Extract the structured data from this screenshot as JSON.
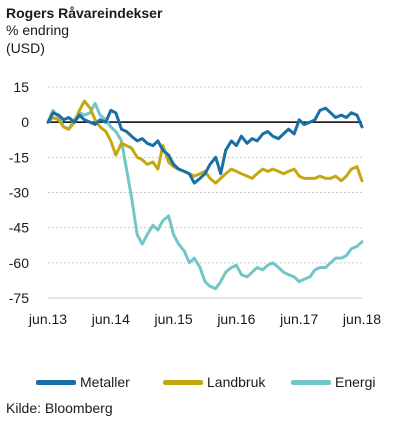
{
  "header": {
    "title": "Rogers Råvareindekser",
    "subtitle_line1": "% endring",
    "subtitle_line2": "(USD)"
  },
  "footer": {
    "source": "Kilde: Bloomberg"
  },
  "colors": {
    "Metaller": "#1a6fa6",
    "Landbruk": "#c4a812",
    "Energi": "#73c6c7",
    "zero_line": "#000000",
    "grid": "#cccccc"
  },
  "chart_data": {
    "type": "line",
    "xlabel": "",
    "ylabel": "",
    "ylim": [
      -75,
      15
    ],
    "yticks": [
      15,
      0,
      -15,
      -30,
      -45,
      -60,
      -75
    ],
    "ytick_labels": [
      "15",
      "0",
      "-15",
      "-30",
      "-45",
      "-60",
      "-75"
    ],
    "xlim": [
      0,
      5
    ],
    "xticks": [
      0,
      1,
      2,
      3,
      4,
      5
    ],
    "xtick_labels": [
      "jun.13",
      "jun.14",
      "jun.15",
      "jun.16",
      "jun.17",
      "jun.18"
    ],
    "grid": "horizontal dashed",
    "legend_position": "bottom",
    "series": [
      {
        "name": "Metaller",
        "x": [
          0.0,
          0.08,
          0.17,
          0.25,
          0.33,
          0.42,
          0.5,
          0.58,
          0.67,
          0.75,
          0.83,
          0.92,
          1.0,
          1.08,
          1.17,
          1.25,
          1.33,
          1.42,
          1.5,
          1.58,
          1.67,
          1.75,
          1.83,
          1.92,
          2.0,
          2.08,
          2.17,
          2.25,
          2.33,
          2.42,
          2.5,
          2.58,
          2.67,
          2.75,
          2.83,
          2.92,
          3.0,
          3.08,
          3.17,
          3.25,
          3.33,
          3.42,
          3.5,
          3.58,
          3.67,
          3.75,
          3.83,
          3.92,
          4.0,
          4.08,
          4.17,
          4.25,
          4.33,
          4.42,
          4.5,
          4.58,
          4.67,
          4.75,
          4.83,
          4.92,
          5.0
        ],
        "y": [
          0,
          4,
          3,
          1,
          2,
          0,
          3,
          1,
          0,
          -1,
          1,
          0,
          5,
          4,
          -3,
          -4,
          -6,
          -8,
          -7,
          -9,
          -10,
          -8,
          -12,
          -14,
          -18,
          -20,
          -21,
          -22,
          -26,
          -24,
          -22,
          -18,
          -15,
          -22,
          -12,
          -8,
          -10,
          -6,
          -9,
          -7,
          -8,
          -5,
          -4,
          -6,
          -7,
          -5,
          -3,
          -5,
          1,
          -1,
          0,
          1,
          5,
          6,
          4,
          2,
          3,
          2,
          4,
          3,
          -2
        ]
      },
      {
        "name": "Landbruk",
        "x": [
          0.0,
          0.08,
          0.17,
          0.25,
          0.33,
          0.42,
          0.5,
          0.58,
          0.67,
          0.75,
          0.83,
          0.92,
          1.0,
          1.08,
          1.17,
          1.25,
          1.33,
          1.42,
          1.5,
          1.58,
          1.67,
          1.75,
          1.83,
          1.92,
          2.0,
          2.08,
          2.17,
          2.25,
          2.33,
          2.42,
          2.5,
          2.58,
          2.67,
          2.75,
          2.83,
          2.92,
          3.0,
          3.08,
          3.17,
          3.25,
          3.33,
          3.42,
          3.5,
          3.58,
          3.67,
          3.75,
          3.83,
          3.92,
          4.0,
          4.08,
          4.17,
          4.25,
          4.33,
          4.42,
          4.5,
          4.58,
          4.67,
          4.75,
          4.83,
          4.92,
          5.0
        ],
        "y": [
          0,
          2,
          1,
          -2,
          -3,
          0,
          5,
          9,
          6,
          1,
          -2,
          -4,
          -8,
          -14,
          -9,
          -10,
          -11,
          -15,
          -16,
          -18,
          -17,
          -20,
          -10,
          -17,
          -19,
          -20,
          -21,
          -22,
          -23,
          -22,
          -21,
          -24,
          -26,
          -24,
          -22,
          -20,
          -21,
          -22,
          -23,
          -24,
          -22,
          -20,
          -21,
          -20,
          -21,
          -22,
          -21,
          -20,
          -23,
          -24,
          -24,
          -24,
          -23,
          -24,
          -24,
          -23,
          -25,
          -23,
          -20,
          -19,
          -25
        ]
      },
      {
        "name": "Energi",
        "x": [
          0.0,
          0.08,
          0.17,
          0.25,
          0.33,
          0.42,
          0.5,
          0.58,
          0.67,
          0.75,
          0.83,
          0.92,
          1.0,
          1.08,
          1.17,
          1.25,
          1.33,
          1.42,
          1.5,
          1.58,
          1.67,
          1.75,
          1.83,
          1.92,
          2.0,
          2.08,
          2.17,
          2.25,
          2.33,
          2.42,
          2.5,
          2.58,
          2.67,
          2.75,
          2.83,
          2.92,
          3.0,
          3.08,
          3.17,
          3.25,
          3.33,
          3.42,
          3.5,
          3.58,
          3.67,
          3.75,
          3.83,
          3.92,
          4.0,
          4.08,
          4.17,
          4.25,
          4.33,
          4.42,
          4.5,
          4.58,
          4.67,
          4.75,
          4.83,
          4.92,
          5.0
        ],
        "y": [
          0,
          5,
          2,
          -2,
          -3,
          1,
          4,
          3,
          4,
          8,
          3,
          1,
          -2,
          -4,
          -8,
          -20,
          -32,
          -48,
          -52,
          -48,
          -44,
          -46,
          -42,
          -40,
          -48,
          -52,
          -55,
          -60,
          -58,
          -62,
          -68,
          -70,
          -71,
          -68,
          -64,
          -62,
          -61,
          -65,
          -66,
          -64,
          -62,
          -63,
          -61,
          -60,
          -62,
          -64,
          -65,
          -66,
          -68,
          -67,
          -66,
          -63,
          -62,
          -62,
          -60,
          -58,
          -58,
          -57,
          -54,
          -53,
          -51
        ]
      }
    ]
  }
}
